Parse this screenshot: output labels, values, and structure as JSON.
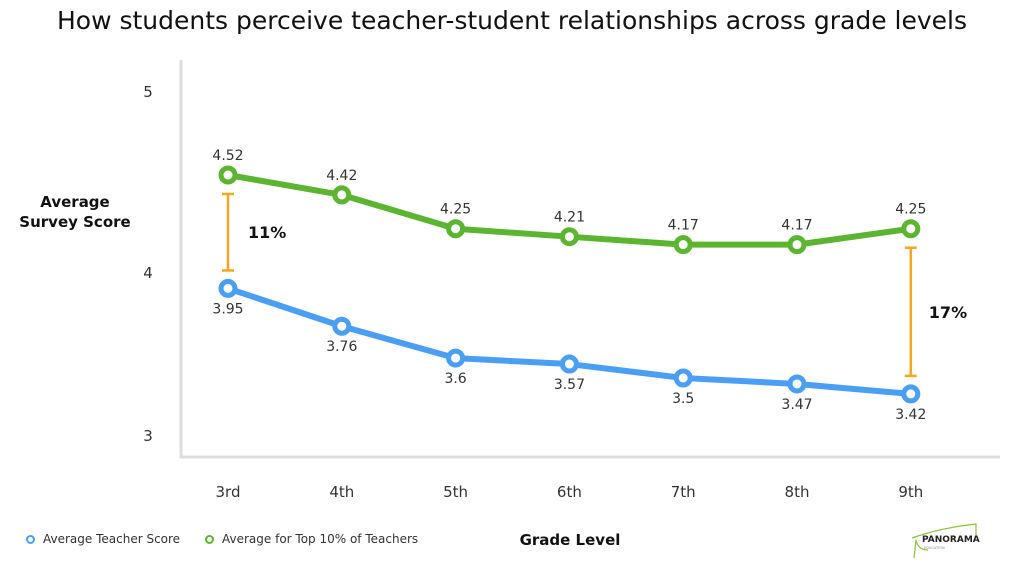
{
  "chart_data": {
    "type": "line",
    "title": "How students perceive teacher-student relationships across grade levels",
    "xlabel": "Grade Level",
    "ylabel": "Average Survey Score",
    "categories": [
      "3rd",
      "4th",
      "5th",
      "6th",
      "7th",
      "8th",
      "9th"
    ],
    "yticks": [
      5,
      4,
      3
    ],
    "ylim": [
      3,
      5
    ],
    "grid": false,
    "legend_position": "bottom-left",
    "series": [
      {
        "name": "Average Teacher Score",
        "color": "#4a9ff5",
        "values": [
          3.95,
          3.76,
          3.6,
          3.57,
          3.5,
          3.47,
          3.42
        ]
      },
      {
        "name": "Average for Top 10% of Teachers",
        "color": "#5cb531",
        "values": [
          4.52,
          4.42,
          4.25,
          4.21,
          4.17,
          4.17,
          4.25
        ]
      }
    ],
    "annotations": [
      {
        "category": "3rd",
        "label": "11%",
        "color": "#f5a623"
      },
      {
        "category": "9th",
        "label": "17%",
        "color": "#f5a623"
      }
    ]
  },
  "logo": {
    "text": "PANORAMA",
    "subtext": "EDUCATION"
  }
}
